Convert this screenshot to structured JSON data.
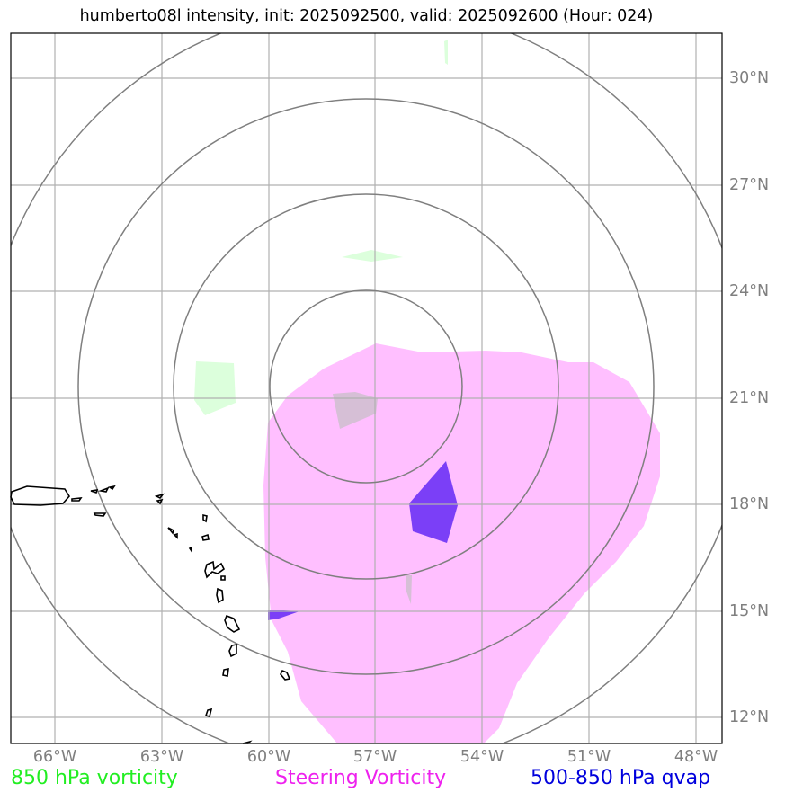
{
  "title": "humberto08l intensity, init: 2025092500, valid: 2025092600 (Hour: 024)",
  "axes": {
    "longitudes": [
      "66°W",
      "63°W",
      "60°W",
      "57°W",
      "54°W",
      "51°W",
      "48°W"
    ],
    "latitudes": [
      "30°N",
      "27°N",
      "24°N",
      "21°N",
      "18°N",
      "15°N",
      "12°N"
    ]
  },
  "legend": {
    "vorticity_850": {
      "label": "850 hPa vorticity",
      "color": "#22ee22"
    },
    "steering_vorticity": {
      "label": "Steering Vorticity",
      "color": "#ee22ee"
    },
    "qvap_500_850": {
      "label": "500-850 hPa qvap",
      "color": "#0000dd"
    }
  },
  "colors": {
    "steering_fill": "#ffbfff",
    "vorticity_fill": "#dcffdc",
    "qvap_fill": "#7b3ff7",
    "overlap_fill": "#d6bfd6",
    "range_rings": "#7f7f7f",
    "gridlines": "#b0b0b0",
    "coastline": "#000000"
  }
}
